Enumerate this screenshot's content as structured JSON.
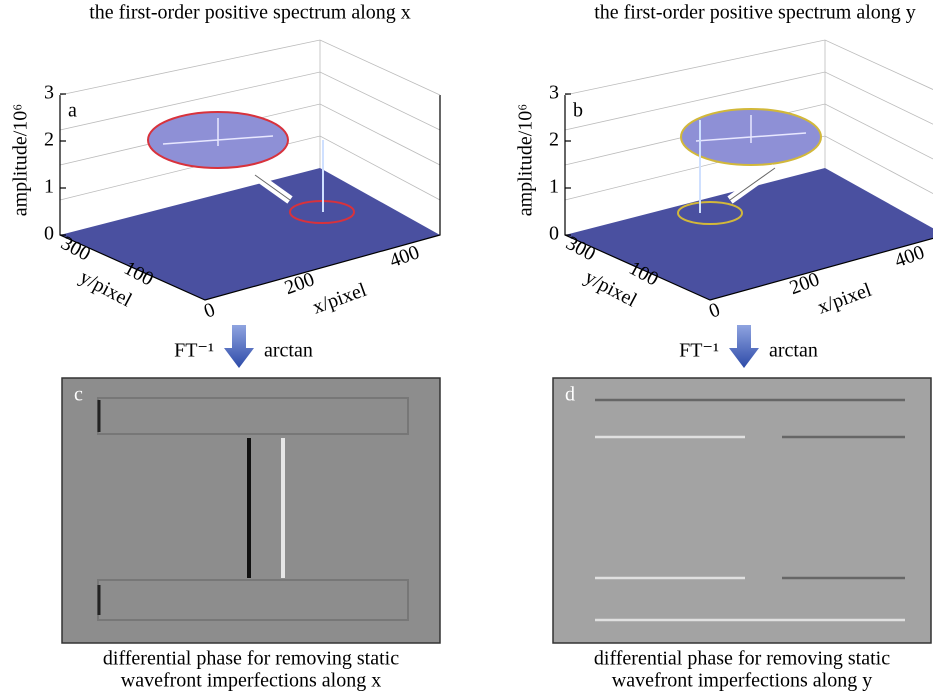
{
  "panels": [
    {
      "title": "the first-order positive spectrum along x",
      "label": "a",
      "z_axis_label": "amplitude/10⁶",
      "z_ticks": [
        "0",
        "1",
        "2",
        "3"
      ],
      "y_axis_label": "y/pixel",
      "y_ticks": [
        "300",
        "100"
      ],
      "x_axis_label": "x/pixel",
      "x_ticks": [
        "0",
        "200",
        "400"
      ],
      "ellipse_color": "#d8323c"
    },
    {
      "title": "the first-order positive spectrum along y",
      "label": "b",
      "z_axis_label": "amplitude/10⁶",
      "z_ticks": [
        "0",
        "1",
        "2",
        "3"
      ],
      "y_axis_label": "y/pixel",
      "y_ticks": [
        "300",
        "100"
      ],
      "x_axis_label": "x/pixel",
      "x_ticks": [
        "0",
        "200",
        "400"
      ],
      "ellipse_color": "#d2b83a"
    }
  ],
  "arrows": [
    {
      "left": "FT⁻¹",
      "right": "arctan"
    },
    {
      "left": "FT⁻¹",
      "right": "arctan"
    }
  ],
  "images": [
    {
      "label": "c",
      "caption": [
        "differential phase for removing static",
        "wavefront imperfections along x"
      ]
    },
    {
      "label": "d",
      "caption": [
        "differential phase for removing static",
        "wavefront imperfections along y"
      ]
    }
  ]
}
